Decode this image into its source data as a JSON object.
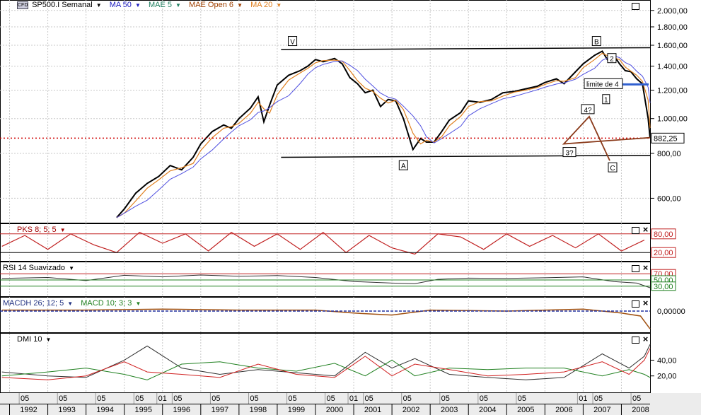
{
  "main_panel": {
    "symbol_label": "SP500.I Semanal",
    "symbol_icon": "cfd-icon",
    "indicators": [
      {
        "label": "MA 50",
        "color": "#2020c0"
      },
      {
        "label": "MAE 5",
        "color": "#208060"
      },
      {
        "label": "MAE Open  6",
        "color": "#a04000"
      },
      {
        "label": "MA 20",
        "color": "#e08020"
      }
    ],
    "price_ticks": [
      "2.000,00",
      "1.800,00",
      "1.600,00",
      "1.400,00",
      "1.200,00",
      "1.000,00",
      "800,00",
      "600,00"
    ],
    "price_tick_values": [
      2000,
      1800,
      1600,
      1400,
      1200,
      1000,
      800,
      600
    ],
    "last_price_label": "882,25",
    "last_price_value": 882.25,
    "wave_labels": [
      "V",
      "A",
      "B",
      "1",
      "2",
      "3?",
      "4?",
      "C"
    ],
    "limit_label": "limite de 4",
    "limit_value": 1245
  },
  "pks_panel": {
    "label": "PKS 8; 5; 5",
    "ticks": [
      "80,00",
      "20,00"
    ],
    "tick_values": [
      80,
      20
    ]
  },
  "rsi_panel": {
    "label": "RSI 14 Suavizado",
    "ticks": [
      "70,00",
      "50,00",
      "30,00"
    ],
    "tick_values": [
      70,
      50,
      30
    ]
  },
  "macd_panel": {
    "label1": "MACDH 26; 12; 5",
    "label2": "MACD 10; 3; 3",
    "ticks": [
      "0,00000"
    ],
    "tick_values": [
      0
    ]
  },
  "dmi_panel": {
    "label": "DMI 10",
    "ticks": [
      "40,00",
      "20,00"
    ],
    "tick_values": [
      40,
      20
    ]
  },
  "x_axis": {
    "years": [
      "1992",
      "1993",
      "1994",
      "1995",
      "1996",
      "1997",
      "1998",
      "1999",
      "2000",
      "2001",
      "2002",
      "2003",
      "2004",
      "2005",
      "2006",
      "2007",
      "2008"
    ],
    "months": [
      "05",
      "05",
      "05",
      "05",
      "01",
      "05",
      "05",
      "05",
      "05",
      "05",
      "01",
      "05",
      "05",
      "05",
      "05",
      "05",
      "01",
      "05",
      "05"
    ]
  },
  "chart_data": {
    "type": "line",
    "title": "SP500.I Semanal",
    "x_range": [
      1991.75,
      2008.75
    ],
    "y_scale": "log",
    "ylim": [
      520,
      2100
    ],
    "series": [
      {
        "name": "SP500.I",
        "x": [
          1994.8,
          1995.0,
          1995.3,
          1995.6,
          1995.9,
          1996.2,
          1996.5,
          1996.8,
          1997.0,
          1997.3,
          1997.6,
          1997.8,
          1998.0,
          1998.3,
          1998.5,
          1998.65,
          1998.8,
          1999.0,
          1999.3,
          1999.6,
          1999.8,
          2000.0,
          2000.2,
          2000.5,
          2000.7,
          2000.9,
          2001.1,
          2001.3,
          2001.5,
          2001.7,
          2001.9,
          2002.1,
          2002.3,
          2002.55,
          2002.75,
          2002.9,
          2003.1,
          2003.3,
          2003.5,
          2003.8,
          2004.0,
          2004.3,
          2004.6,
          2004.9,
          2005.2,
          2005.5,
          2005.8,
          2006.0,
          2006.3,
          2006.5,
          2006.8,
          2007.0,
          2007.3,
          2007.5,
          2007.65,
          2007.8,
          2007.95,
          2008.1,
          2008.25,
          2008.4,
          2008.55,
          2008.7,
          2008.75
        ],
        "values": [
          530,
          560,
          620,
          660,
          690,
          740,
          720,
          780,
          850,
          920,
          960,
          940,
          1000,
          1070,
          1150,
          980,
          1090,
          1240,
          1320,
          1360,
          1400,
          1460,
          1440,
          1470,
          1420,
          1300,
          1250,
          1180,
          1200,
          1080,
          1130,
          1120,
          1000,
          820,
          880,
          860,
          860,
          920,
          990,
          1040,
          1120,
          1110,
          1130,
          1180,
          1190,
          1210,
          1230,
          1260,
          1290,
          1250,
          1350,
          1420,
          1500,
          1540,
          1450,
          1500,
          1420,
          1360,
          1350,
          1290,
          1250,
          1000,
          882
        ]
      }
    ],
    "pks_series": {
      "x": [
        1991.8,
        1992.4,
        1993.0,
        1993.6,
        1994.2,
        1994.8,
        1995.4,
        1996.0,
        1996.6,
        1997.2,
        1997.8,
        1998.4,
        1999.0,
        1999.6,
        2000.2,
        2000.8,
        2001.4,
        2002.0,
        2002.6,
        2003.2,
        2003.8,
        2004.4,
        2005.0,
        2005.6,
        2006.2,
        2006.8,
        2007.4,
        2008.0,
        2008.6
      ],
      "values": [
        40,
        75,
        30,
        80,
        45,
        20,
        85,
        50,
        80,
        25,
        85,
        40,
        80,
        30,
        85,
        20,
        75,
        35,
        15,
        80,
        70,
        30,
        80,
        40,
        75,
        35,
        80,
        25,
        60
      ]
    },
    "rsi_series": {
      "x": [
        1991.8,
        1993.0,
        1994.0,
        1995.0,
        1996.0,
        1997.0,
        1998.0,
        1999.0,
        2000.0,
        2001.0,
        2002.0,
        2002.6,
        2003.2,
        2004.0,
        2005.0,
        2006.0,
        2007.0,
        2007.8,
        2008.4,
        2008.75
      ],
      "values": [
        55,
        58,
        48,
        65,
        60,
        66,
        62,
        64,
        58,
        45,
        40,
        38,
        52,
        56,
        55,
        57,
        60,
        45,
        40,
        25
      ]
    },
    "macd_series": {
      "x": [
        1991.8,
        1994.0,
        1996.0,
        1998.0,
        2000.0,
        2001.0,
        2002.0,
        2003.0,
        2004.0,
        2005.0,
        2006.0,
        2007.0,
        2008.0,
        2008.5,
        2008.75
      ],
      "values": [
        0.1,
        0.1,
        0.2,
        0.1,
        0.1,
        -0.2,
        -0.4,
        0.1,
        0.05,
        0.0,
        0.1,
        0.2,
        -0.2,
        -0.5,
        -1.8
      ]
    },
    "dmi_series": [
      {
        "x": [
          1991.8,
          1993.0,
          1994.0,
          1995.0,
          1995.6,
          1996.5,
          1997.5,
          1998.5,
          1999.5,
          2000.5,
          2001.3,
          2002.0,
          2002.6,
          2003.5,
          2004.5,
          2005.5,
          2006.5,
          2007.5,
          2008.2,
          2008.6,
          2008.75
        ],
        "values": [
          25,
          20,
          18,
          40,
          58,
          30,
          22,
          28,
          24,
          20,
          50,
          30,
          42,
          22,
          18,
          15,
          18,
          48,
          30,
          45,
          60
        ]
      },
      {
        "x": [
          1991.8,
          1993.0,
          1994.0,
          1995.0,
          1995.6,
          1996.5,
          1997.5,
          1998.5,
          1999.5,
          2000.5,
          2001.3,
          2002.0,
          2002.6,
          2003.5,
          2004.5,
          2005.5,
          2006.5,
          2007.5,
          2008.2,
          2008.6,
          2008.75
        ],
        "values": [
          20,
          25,
          30,
          22,
          15,
          35,
          38,
          30,
          26,
          36,
          20,
          40,
          20,
          30,
          28,
          30,
          30,
          20,
          28,
          22,
          18
        ]
      },
      {
        "x": [
          1991.8,
          1993.0,
          1994.0,
          1995.0,
          1995.6,
          1996.5,
          1997.5,
          1998.5,
          1999.5,
          2000.5,
          2001.3,
          2002.0,
          2002.6,
          2003.5,
          2004.5,
          2005.5,
          2006.5,
          2007.5,
          2008.2,
          2008.6,
          2008.75
        ],
        "values": [
          18,
          15,
          20,
          38,
          25,
          22,
          18,
          35,
          22,
          18,
          45,
          20,
          35,
          28,
          20,
          22,
          25,
          38,
          22,
          40,
          55
        ]
      }
    ]
  }
}
